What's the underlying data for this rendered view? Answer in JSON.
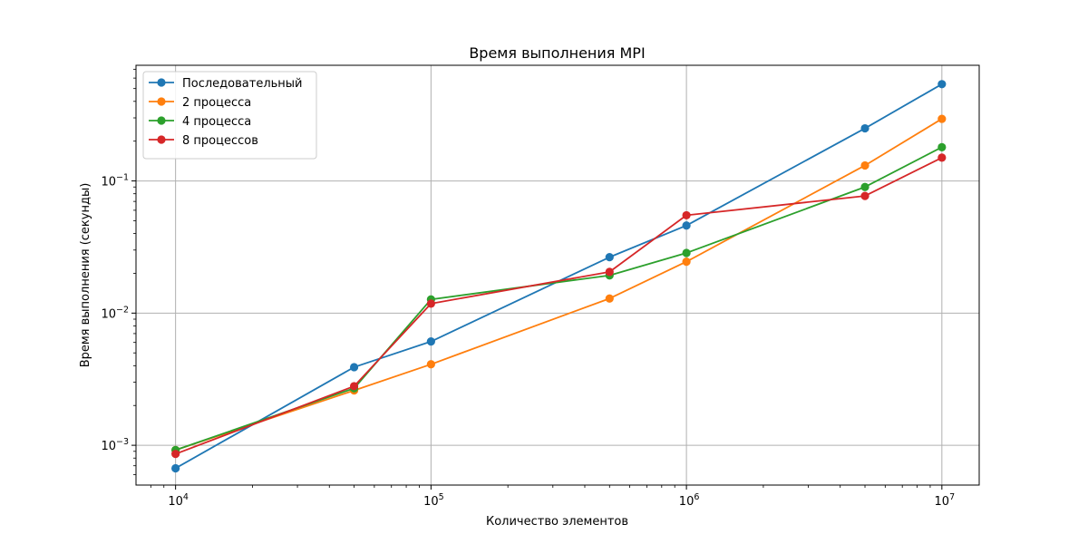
{
  "chart_data": {
    "type": "line",
    "title": "Время выполнения MPI",
    "xlabel": "Количество элементов",
    "ylabel": "Время выполнения (секунды)",
    "x_scale": "log",
    "y_scale": "log",
    "xlim": [
      7000,
      14000000
    ],
    "ylim": [
      0.0005,
      0.75
    ],
    "x_ticks": [
      {
        "base": "10",
        "exp": "4",
        "value": 10000
      },
      {
        "base": "10",
        "exp": "5",
        "value": 100000
      },
      {
        "base": "10",
        "exp": "6",
        "value": 1000000
      },
      {
        "base": "10",
        "exp": "7",
        "value": 10000000
      }
    ],
    "y_ticks": [
      {
        "base": "10",
        "exp": "−3",
        "value": 0.001
      },
      {
        "base": "10",
        "exp": "−2",
        "value": 0.01
      },
      {
        "base": "10",
        "exp": "−1",
        "value": 0.1
      }
    ],
    "grid": true,
    "legend_position": "top-left",
    "x": [
      10000,
      50000,
      100000,
      500000,
      1000000,
      5000000,
      10000000
    ],
    "series": [
      {
        "name": "Последовательный",
        "color": "#1f77b4",
        "values": [
          0.00067,
          0.0039,
          0.0061,
          0.0265,
          0.046,
          0.25,
          0.54
        ]
      },
      {
        "name": "2 процесса",
        "color": "#ff7f0e",
        "values": [
          0.00092,
          0.0026,
          0.0041,
          0.0129,
          0.0245,
          0.131,
          0.295
        ]
      },
      {
        "name": "4 процесса",
        "color": "#2ca02c",
        "values": [
          0.00092,
          0.0027,
          0.0127,
          0.0193,
          0.0285,
          0.09,
          0.18
        ]
      },
      {
        "name": "8 процессов",
        "color": "#d62728",
        "values": [
          0.00086,
          0.0028,
          0.0118,
          0.0205,
          0.055,
          0.077,
          0.15
        ]
      }
    ]
  }
}
